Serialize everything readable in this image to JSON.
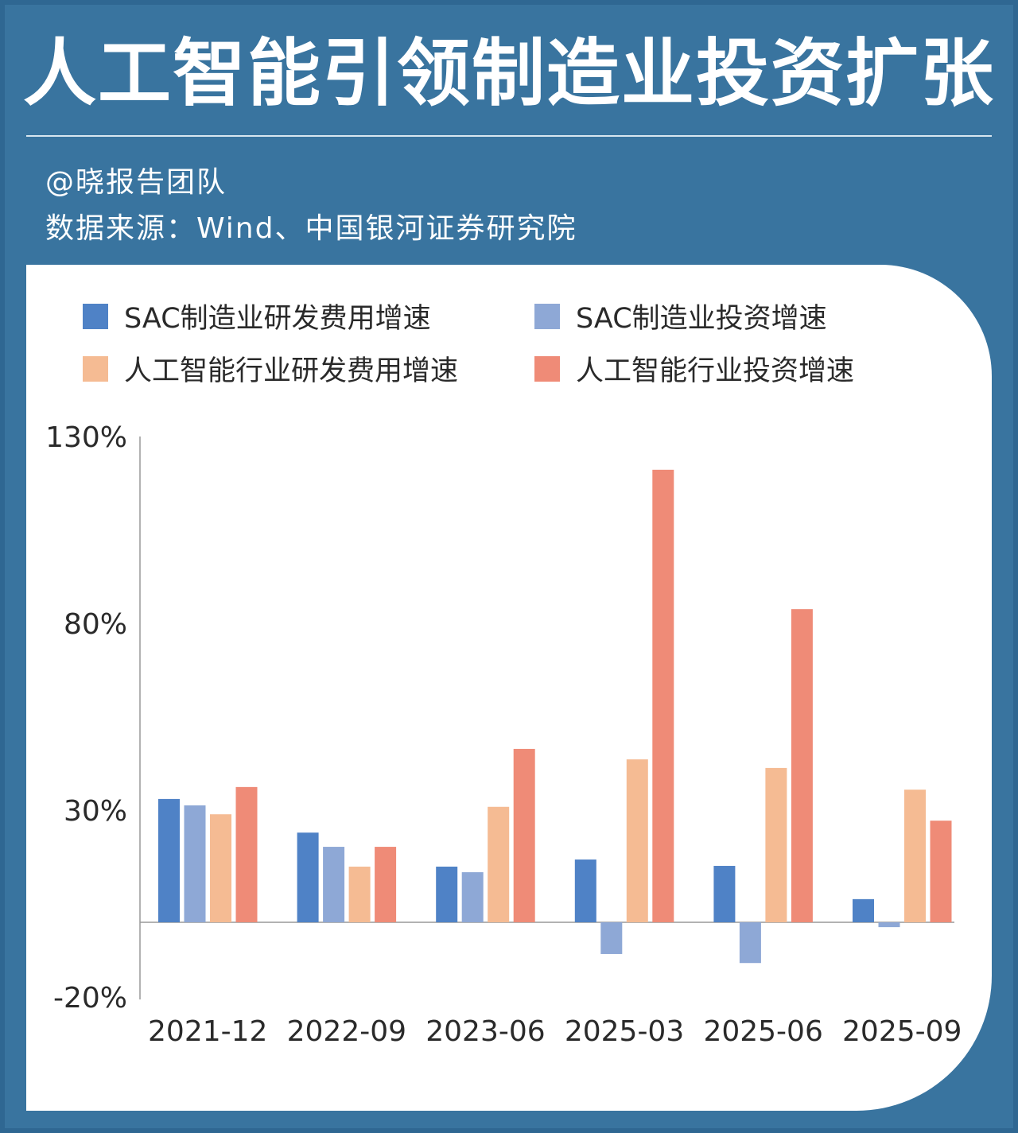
{
  "header": {
    "title": "人工智能引领制造业投资扩张",
    "author": "@晓报告团队",
    "source": "数据来源：Wind、中国银河证券研究院"
  },
  "chart_data": {
    "type": "bar",
    "title": "人工智能引领制造业投资扩张",
    "categories": [
      "2021-12",
      "2022-09",
      "2023-06",
      "2025-03",
      "2025-06",
      "2025-09"
    ],
    "series": [
      {
        "name": "SAC制造业研发费用增速",
        "color": "#4f82c6",
        "values": [
          33.0,
          24.0,
          14.9,
          16.8,
          15.1,
          6.2
        ]
      },
      {
        "name": "SAC制造业投资增速",
        "color": "#8ea8d6",
        "values": [
          31.3,
          20.2,
          13.4,
          -8.5,
          -10.9,
          -1.3
        ]
      },
      {
        "name": "人工智能行业研发费用增速",
        "color": "#f5bb93",
        "values": [
          28.9,
          14.9,
          30.9,
          43.6,
          41.3,
          35.5
        ]
      },
      {
        "name": "人工智能行业投资增速",
        "color": "#ef8b77",
        "values": [
          36.2,
          20.2,
          46.4,
          121.1,
          83.8,
          27.2
        ]
      }
    ],
    "yticks": [
      "130%",
      "80%",
      "30%",
      "-20%"
    ],
    "yticks_values": [
      130,
      80,
      30,
      -20
    ],
    "ylim": [
      -20,
      130
    ],
    "legend": "top",
    "grid": false
  }
}
